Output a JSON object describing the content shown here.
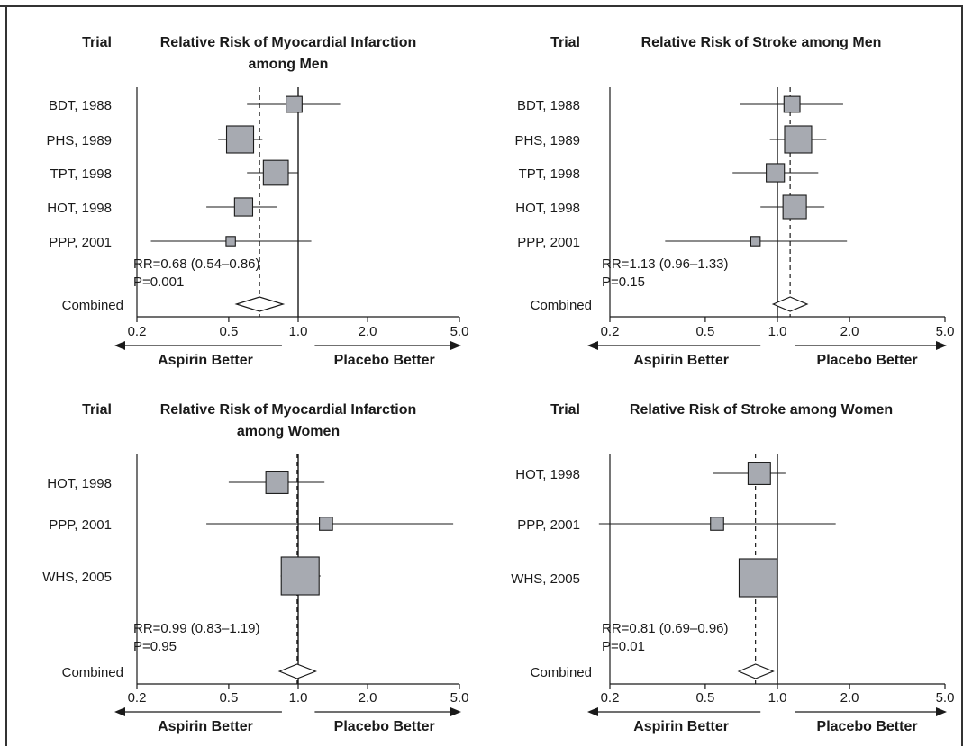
{
  "chart_data": [
    {
      "type": "forest",
      "trial_header": "Trial",
      "title_lines": [
        "Relative Risk of Myocardial Infarction",
        "among Men"
      ],
      "scale": "log",
      "xlim": [
        0.2,
        5.0
      ],
      "ticks": [
        "0.2",
        "0.5",
        "1.0",
        "2.0",
        "5.0"
      ],
      "tick_values": [
        0.2,
        0.5,
        1.0,
        2.0,
        5.0
      ],
      "left_arrow_label": "Aspirin Better",
      "right_arrow_label": "Placebo Better",
      "trials": [
        {
          "label": "BDT, 1988",
          "rr": 0.96,
          "lo": 0.6,
          "hi": 1.52,
          "weight": 0.35
        },
        {
          "label": "PHS, 1989",
          "rr": 0.56,
          "lo": 0.45,
          "hi": 0.7,
          "weight": 1.0
        },
        {
          "label": "TPT, 1998",
          "rr": 0.8,
          "lo": 0.6,
          "hi": 1.0,
          "weight": 0.85
        },
        {
          "label": "HOT, 1998",
          "rr": 0.58,
          "lo": 0.4,
          "hi": 0.81,
          "weight": 0.45
        },
        {
          "label": "PPP, 2001",
          "rr": 0.51,
          "lo": 0.23,
          "hi": 1.14,
          "weight": 0.12
        }
      ],
      "combined_label": "Combined",
      "combined": {
        "rr": 0.68,
        "lo": 0.54,
        "hi": 0.86
      },
      "rr_text": "RR=0.68 (0.54–0.86)",
      "p_text": "P=0.001"
    },
    {
      "type": "forest",
      "trial_header": "Trial",
      "title_lines": [
        "Relative Risk of Stroke among Men"
      ],
      "scale": "log",
      "xlim": [
        0.2,
        5.0
      ],
      "ticks": [
        "0.2",
        "0.5",
        "1.0",
        "2.0",
        "5.0"
      ],
      "tick_values": [
        0.2,
        0.5,
        1.0,
        2.0,
        5.0
      ],
      "left_arrow_label": "Aspirin Better",
      "right_arrow_label": "Placebo Better",
      "trials": [
        {
          "label": "BDT, 1988",
          "rr": 1.15,
          "lo": 0.7,
          "hi": 1.88,
          "weight": 0.35
        },
        {
          "label": "PHS, 1989",
          "rr": 1.22,
          "lo": 0.93,
          "hi": 1.6,
          "weight": 1.0
        },
        {
          "label": "TPT, 1998",
          "rr": 0.98,
          "lo": 0.65,
          "hi": 1.48,
          "weight": 0.45
        },
        {
          "label": "HOT, 1998",
          "rr": 1.18,
          "lo": 0.85,
          "hi": 1.57,
          "weight": 0.75
        },
        {
          "label": "PPP, 2001",
          "rr": 0.81,
          "lo": 0.34,
          "hi": 1.95,
          "weight": 0.12
        }
      ],
      "combined_label": "Combined",
      "combined": {
        "rr": 1.13,
        "lo": 0.96,
        "hi": 1.33
      },
      "rr_text": "RR=1.13 (0.96–1.33)",
      "p_text": "P=0.15"
    },
    {
      "type": "forest",
      "trial_header": "Trial",
      "title_lines": [
        "Relative Risk of Myocardial Infarction",
        "among Women"
      ],
      "scale": "log",
      "xlim": [
        0.2,
        5.0
      ],
      "ticks": [
        "0.2",
        "0.5",
        "1.0",
        "2.0",
        "5.0"
      ],
      "tick_values": [
        0.2,
        0.5,
        1.0,
        2.0,
        5.0
      ],
      "left_arrow_label": "Aspirin Better",
      "right_arrow_label": "Placebo Better",
      "trials": [
        {
          "label": "HOT, 1998",
          "rr": 0.81,
          "lo": 0.5,
          "hi": 1.3,
          "weight": 0.35
        },
        {
          "label": "PPP, 2001",
          "rr": 1.32,
          "lo": 0.4,
          "hi": 4.7,
          "weight": 0.12
        },
        {
          "label": "WHS, 2005",
          "rr": 1.02,
          "lo": 0.84,
          "hi": 1.25,
          "weight": 1.0
        }
      ],
      "combined_label": "Combined",
      "combined": {
        "rr": 0.99,
        "lo": 0.83,
        "hi": 1.19
      },
      "rr_text": "RR=0.99 (0.83–1.19)",
      "p_text": "P=0.95"
    },
    {
      "type": "forest",
      "trial_header": "Trial",
      "title_lines": [
        "Relative Risk of Stroke among Women"
      ],
      "scale": "log",
      "xlim": [
        0.2,
        5.0
      ],
      "ticks": [
        "0.2",
        "0.5",
        "1.0",
        "2.0",
        "5.0"
      ],
      "tick_values": [
        0.2,
        0.5,
        1.0,
        2.0,
        5.0
      ],
      "left_arrow_label": "Aspirin Better",
      "right_arrow_label": "Placebo Better",
      "trials": [
        {
          "label": "HOT, 1998",
          "rr": 0.84,
          "lo": 0.54,
          "hi": 1.08,
          "weight": 0.35
        },
        {
          "label": "PPP, 2001",
          "rr": 0.56,
          "lo": 0.18,
          "hi": 1.75,
          "weight": 0.12
        },
        {
          "label": "WHS, 2005",
          "rr": 0.83,
          "lo": 0.69,
          "hi": 0.98,
          "weight": 1.0
        }
      ],
      "combined_label": "Combined",
      "combined": {
        "rr": 0.81,
        "lo": 0.69,
        "hi": 0.96
      },
      "rr_text": "RR=0.81 (0.69–0.96)",
      "p_text": "P=0.01"
    }
  ]
}
